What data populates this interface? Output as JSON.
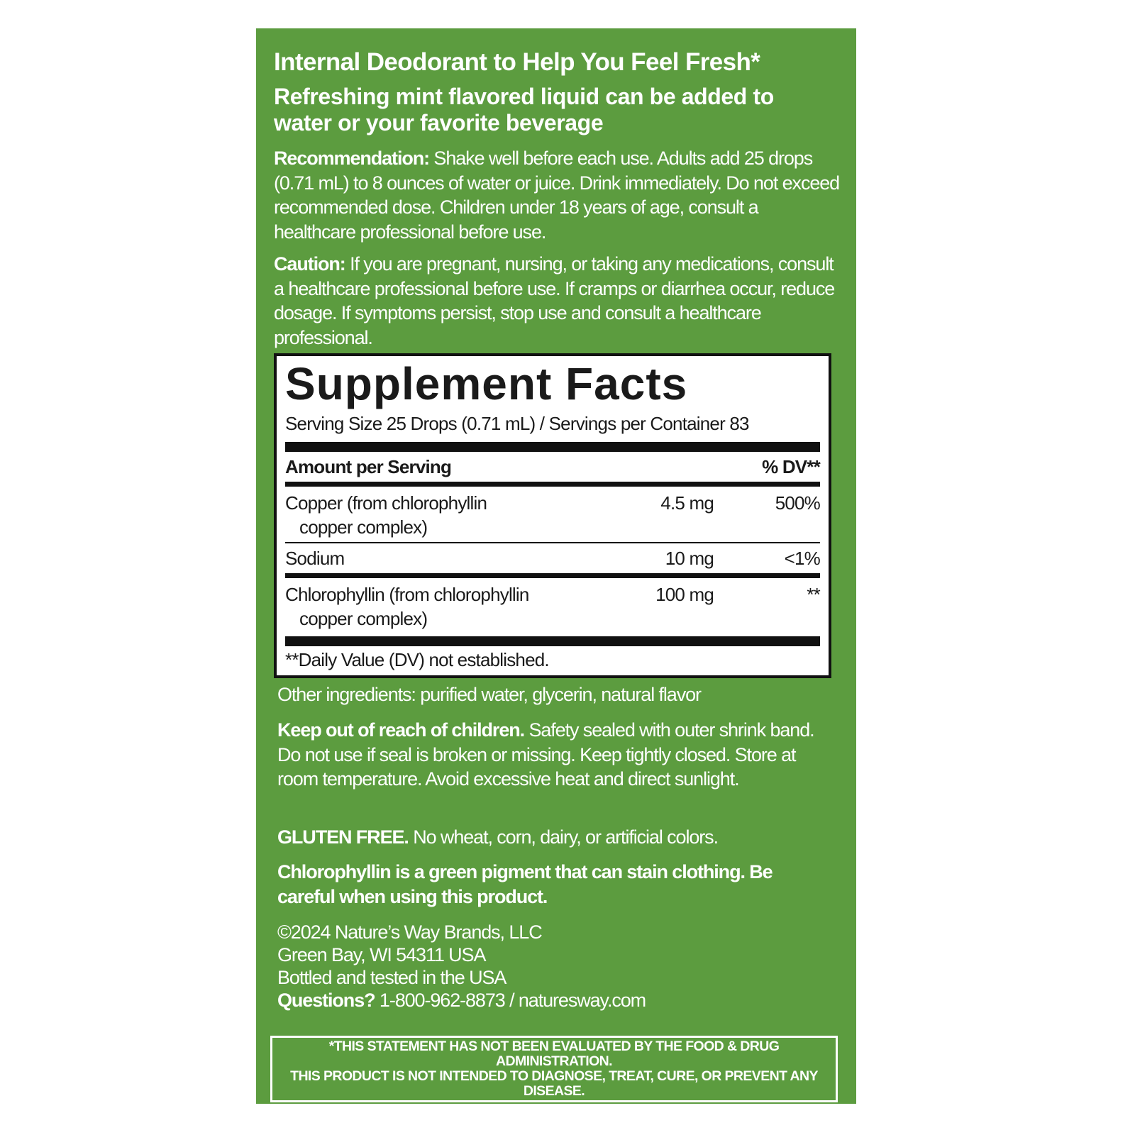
{
  "headline": "Internal Deodorant to Help You Feel Fresh*",
  "subheadline": "Refreshing mint flavored liquid can be added to water or your favorite beverage",
  "recommendation": {
    "label": "Recommendation:",
    "text": " Shake well before each use. Adults add 25 drops (0.71 mL) to 8 ounces of water or juice. Drink immediately. Do not exceed recommended dose. Children under 18 years of age, consult a healthcare professional before use."
  },
  "caution": {
    "label": "Caution:",
    "text": " If you are pregnant, nursing, or taking any medications, consult a healthcare professional before use. If cramps or diarrhea occur, reduce dosage. If symptoms persist, stop use and consult a healthcare professional."
  },
  "supplement_facts": {
    "title": "Supplement Facts",
    "serving": "Serving Size 25 Drops (0.71 mL) / Servings per Container 83",
    "header_amount": "Amount per Serving",
    "header_dv": "% DV**",
    "rows": [
      {
        "name": "Copper (from chlorophyllin",
        "name2": "copper complex)",
        "amount": "4.5 mg",
        "dv": "500%"
      },
      {
        "name": "Sodium",
        "amount": "10 mg",
        "dv": "<1%"
      },
      {
        "name": "Chlorophyllin (from chlorophyllin",
        "name2": "copper complex)",
        "amount": "100 mg",
        "dv": "**"
      }
    ],
    "footnote": "**Daily Value (DV) not established."
  },
  "other_ingredients": "Other ingredients: purified water, glycerin, natural flavor",
  "keep_out": {
    "label": "Keep out of reach of children.",
    "text": " Safety sealed with outer shrink band. Do not use if seal is broken or missing. Keep tightly closed. Store at room temperature. Avoid excessive heat and direct sunlight."
  },
  "gluten": {
    "label": "GLUTEN FREE.",
    "text": " No wheat, corn, dairy, or artificial colors."
  },
  "stain_warning": "Chlorophyllin is a green pigment that can stain clothing. Be careful when using this product.",
  "company": {
    "copyright": "©2024 Nature’s Way Brands, LLC",
    "address": "Green Bay, WI 54311 USA",
    "origin": "Bottled and tested in the USA",
    "questions_label": "Questions?",
    "contact": " 1-800-962-8873 / naturesway.com"
  },
  "disclaimer": {
    "line1": "*THIS STATEMENT HAS NOT BEEN EVALUATED BY THE FOOD & DRUG ADMINISTRATION.",
    "line2": "THIS PRODUCT IS NOT INTENDED TO DIAGNOSE, TREAT, CURE, OR PREVENT ANY DISEASE."
  },
  "colors": {
    "panel": "#5c9c3f",
    "text": "#ffffff"
  }
}
